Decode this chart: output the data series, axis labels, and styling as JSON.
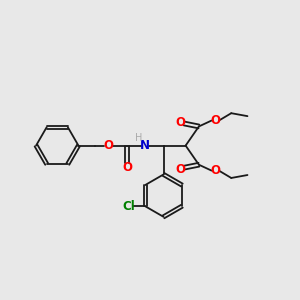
{
  "bg_color": "#e8e8e8",
  "bond_color": "#1a1a1a",
  "o_color": "#ff0000",
  "n_color": "#0000cc",
  "cl_color": "#008000",
  "h_color": "#aaaaaa",
  "figsize": [
    3.0,
    3.0
  ],
  "dpi": 100,
  "xlim": [
    0,
    10
  ],
  "ylim": [
    0,
    10
  ]
}
